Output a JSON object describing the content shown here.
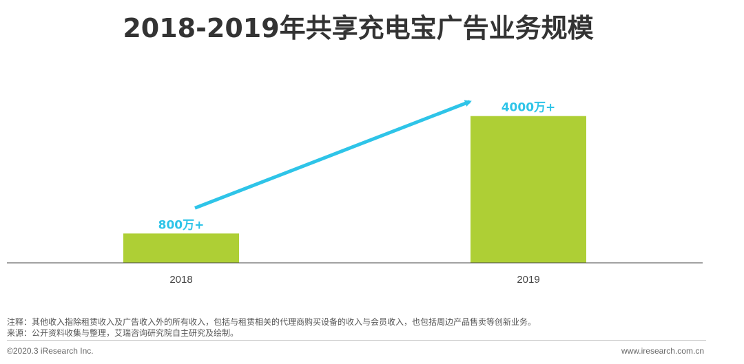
{
  "title": "2018-2019年共享充电宝广告业务规模",
  "chart_data": {
    "type": "bar",
    "categories": [
      "2018",
      "2019"
    ],
    "values": [
      800,
      4000
    ],
    "value_labels": [
      "800万+",
      "4000万+"
    ],
    "unit": "万",
    "ylim": [
      0,
      4500
    ],
    "grid": false,
    "annotation": "growth arrow from 2018 bar to 2019 bar"
  },
  "colors": {
    "bar": "#aecf35",
    "label": "#2ec4e8",
    "arrow": "#2ec4e8",
    "axis": "#444444"
  },
  "notes": {
    "note": "注释：其他收入指除租赁收入及广告收入外的所有收入，包括与租赁相关的代理商购买设备的收入与会员收入，也包括周边产品售卖等创新业务。",
    "source": "来源：公开资料收集与整理，艾瑞咨询研究院自主研究及绘制。"
  },
  "footer": {
    "copyright": "©2020.3 iResearch Inc.",
    "website": "www.iresearch.com.cn"
  }
}
